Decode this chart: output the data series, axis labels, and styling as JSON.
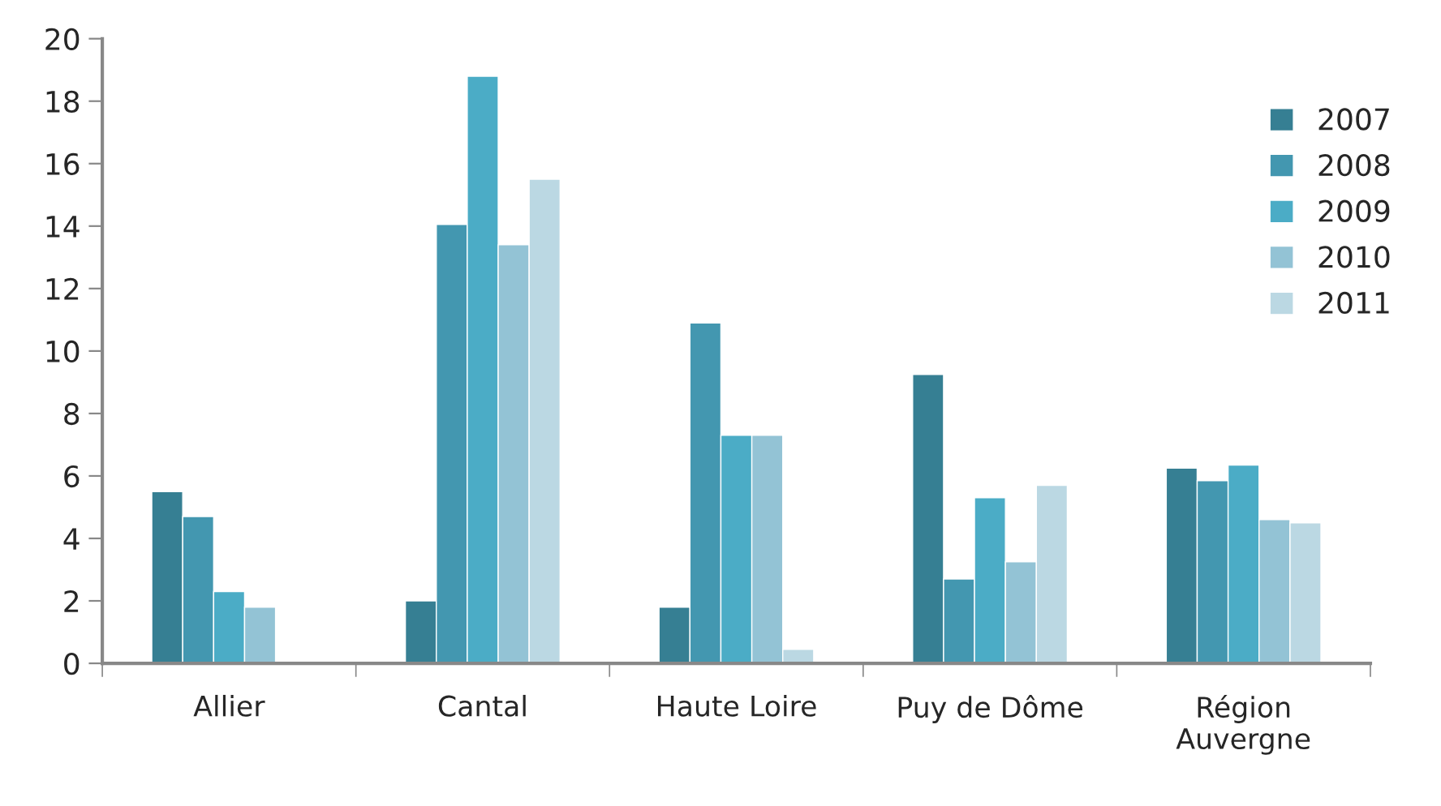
{
  "chart_data": {
    "type": "bar",
    "categories": [
      "Allier",
      "Cantal",
      "Haute Loire",
      "Puy de Dôme",
      "Région\nAuvergne"
    ],
    "series": [
      {
        "name": "2007",
        "color": "#367f93",
        "values": [
          5.5,
          2.0,
          1.8,
          9.25,
          6.25
        ]
      },
      {
        "name": "2008",
        "color": "#4397b0",
        "values": [
          4.7,
          14.05,
          10.9,
          2.7,
          5.85
        ]
      },
      {
        "name": "2009",
        "color": "#4bacc6",
        "values": [
          2.3,
          18.8,
          7.3,
          5.3,
          6.35
        ]
      },
      {
        "name": "2010",
        "color": "#93c3d5",
        "values": [
          1.8,
          13.4,
          7.3,
          3.25,
          4.6
        ]
      },
      {
        "name": "2011",
        "color": "#bbd8e3",
        "values": [
          null,
          15.5,
          0.45,
          5.7,
          4.5
        ]
      }
    ],
    "ylim": [
      0,
      20
    ],
    "yticks": [
      0,
      2,
      4,
      6,
      8,
      10,
      12,
      14,
      16,
      18,
      20
    ],
    "grid": false,
    "legend": "right"
  }
}
